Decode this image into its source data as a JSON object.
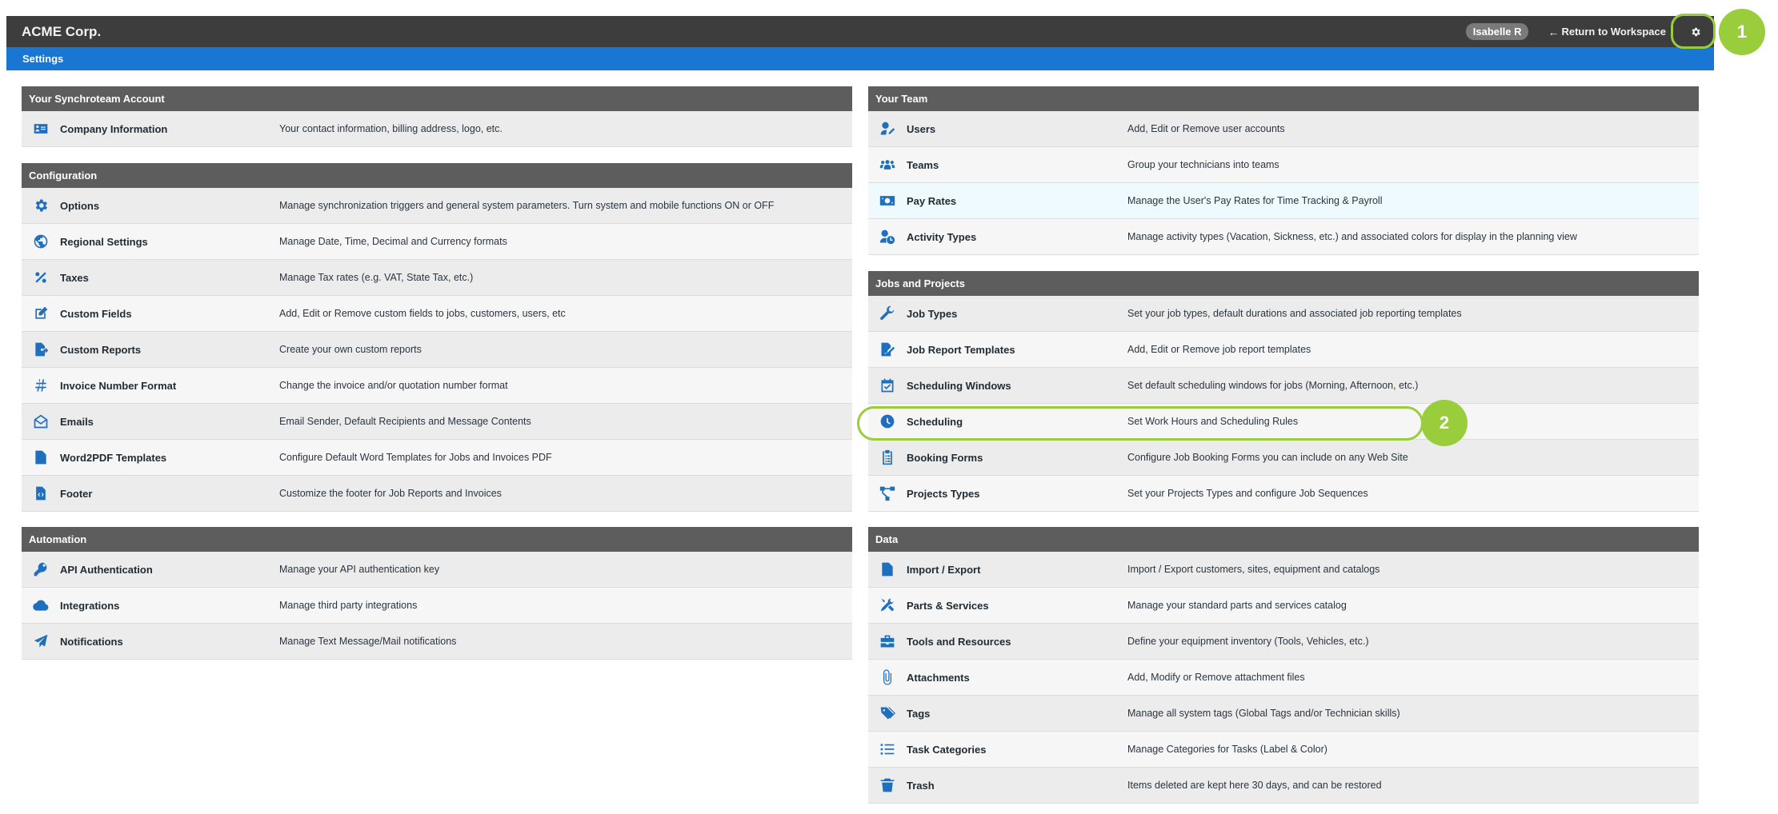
{
  "app": {
    "brand": "ACME Corp.",
    "user": "Isabelle R",
    "return_label": "Return to Workspace",
    "subbar_title": "Settings"
  },
  "colors": {
    "topbar": "#3d3d3d",
    "subbar": "#1976d2",
    "panel_header": "#5d5d5d",
    "icon": "#1f6fbf",
    "callout": "#9acd3c"
  },
  "callouts": {
    "one": "1",
    "two": "2"
  },
  "panels": {
    "account": {
      "title": "Your Synchroteam Account",
      "items": [
        {
          "icon": "id-card-icon",
          "label": "Company Information",
          "desc": "Your contact information, billing address, logo, etc."
        }
      ]
    },
    "configuration": {
      "title": "Configuration",
      "items": [
        {
          "icon": "gear-icon",
          "label": "Options",
          "desc": "Manage synchronization triggers and general system parameters. Turn system and mobile functions ON or OFF"
        },
        {
          "icon": "globe-icon",
          "label": "Regional Settings",
          "desc": "Manage Date, Time, Decimal and Currency formats"
        },
        {
          "icon": "percent-icon",
          "label": "Taxes",
          "desc": "Manage Tax rates (e.g. VAT, State Tax, etc.)"
        },
        {
          "icon": "edit-icon",
          "label": "Custom Fields",
          "desc": "Add, Edit or Remove custom fields to jobs, customers, users, etc"
        },
        {
          "icon": "file-export-icon",
          "label": "Custom Reports",
          "desc": "Create your own custom reports"
        },
        {
          "icon": "hashtag-icon",
          "label": "Invoice Number Format",
          "desc": "Change the invoice and/or quotation number format"
        },
        {
          "icon": "envelope-open-icon",
          "label": "Emails",
          "desc": "Email Sender, Default Recipients and Message Contents"
        },
        {
          "icon": "file-pdf-icon",
          "label": "Word2PDF Templates",
          "desc": "Configure Default Word Templates for Jobs and Invoices PDF"
        },
        {
          "icon": "file-code-icon",
          "label": "Footer",
          "desc": "Customize the footer for Job Reports and Invoices"
        }
      ]
    },
    "automation": {
      "title": "Automation",
      "items": [
        {
          "icon": "key-icon",
          "label": "API Authentication",
          "desc": "Manage your API authentication key"
        },
        {
          "icon": "cloud-icon",
          "label": "Integrations",
          "desc": "Manage third party integrations"
        },
        {
          "icon": "paper-plane-icon",
          "label": "Notifications",
          "desc": "Manage Text Message/Mail notifications"
        }
      ]
    },
    "team": {
      "title": "Your Team",
      "items": [
        {
          "icon": "user-edit-icon",
          "label": "Users",
          "desc": "Add, Edit or Remove user accounts"
        },
        {
          "icon": "users-icon",
          "label": "Teams",
          "desc": "Group your technicians into teams"
        },
        {
          "icon": "money-bill-icon",
          "label": "Pay Rates",
          "desc": "Manage the User's Pay Rates for Time Tracking & Payroll"
        },
        {
          "icon": "user-clock-icon",
          "label": "Activity Types",
          "desc": "Manage activity types (Vacation, Sickness, etc.) and associated colors for display in the planning view"
        }
      ]
    },
    "jobs": {
      "title": "Jobs and Projects",
      "items": [
        {
          "icon": "wrench-icon",
          "label": "Job Types",
          "desc": "Set your job types, default durations and associated job reporting templates"
        },
        {
          "icon": "file-signature-icon",
          "label": "Job Report Templates",
          "desc": "Add, Edit or Remove job report templates"
        },
        {
          "icon": "calendar-check-icon",
          "label": "Scheduling Windows",
          "desc": "Set default scheduling windows for jobs (Morning, Afternoon, etc.)"
        },
        {
          "icon": "clock-icon",
          "label": "Scheduling",
          "desc": "Set Work Hours and Scheduling Rules"
        },
        {
          "icon": "clipboard-list-icon",
          "label": "Booking Forms",
          "desc": "Configure Job Booking Forms you can include on any Web Site"
        },
        {
          "icon": "project-diagram-icon",
          "label": "Projects Types",
          "desc": "Set your Projects Types and configure Job Sequences"
        }
      ]
    },
    "data": {
      "title": "Data",
      "items": [
        {
          "icon": "file-csv-icon",
          "label": "Import / Export",
          "desc": "Import / Export customers, sites, equipment and catalogs"
        },
        {
          "icon": "tools-icon",
          "label": "Parts & Services",
          "desc": "Manage your standard parts and services catalog"
        },
        {
          "icon": "toolbox-icon",
          "label": "Tools and Resources",
          "desc": "Define your equipment inventory (Tools, Vehicles, etc.)"
        },
        {
          "icon": "paperclip-icon",
          "label": "Attachments",
          "desc": "Add, Modify or Remove attachment files"
        },
        {
          "icon": "tags-icon",
          "label": "Tags",
          "desc": "Manage all system tags (Global Tags and/or Technician skills)"
        },
        {
          "icon": "list-icon",
          "label": "Task Categories",
          "desc": "Manage Categories for Tasks (Label & Color)"
        },
        {
          "icon": "trash-icon",
          "label": "Trash",
          "desc": "Items deleted are kept here 30 days, and can be restored"
        }
      ]
    }
  }
}
